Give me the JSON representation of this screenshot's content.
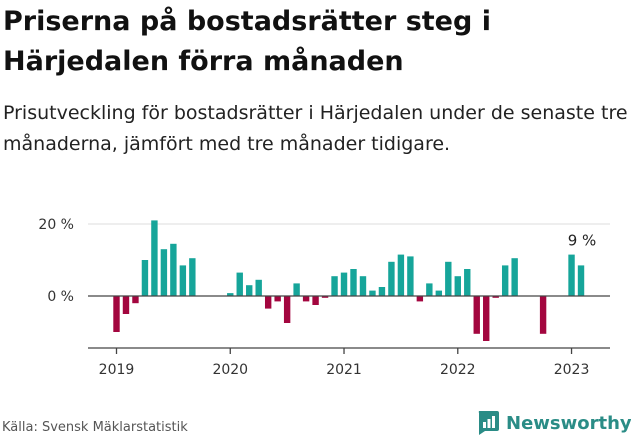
{
  "title": "Priserna på bostadsrätter steg i Härjedalen förra månaden",
  "subtitle": "Prisutveckling för bostadsrätter i Härjedalen under de senaste tre månaderna, jämfört med tre månader tidigare.",
  "source": "Källa: Svensk Mäklarstatistik",
  "logo": {
    "text": "Newsworthy",
    "icon": "newsworthy-chart-icon"
  },
  "colors": {
    "positive": "#16a59a",
    "negative": "#a3063f",
    "axis": "#444444",
    "grid": "#dddddd",
    "logo": "#2a8c86"
  },
  "chart_data": {
    "type": "bar",
    "x": [
      "2019-01",
      "2019-02",
      "2019-03",
      "2019-04",
      "2019-05",
      "2019-06",
      "2019-07",
      "2019-08",
      "2019-09",
      "2019-10",
      "2019-11",
      "2019-12",
      "2020-01",
      "2020-02",
      "2020-03",
      "2020-04",
      "2020-05",
      "2020-06",
      "2020-07",
      "2020-08",
      "2020-09",
      "2020-10",
      "2020-11",
      "2020-12",
      "2021-01",
      "2021-02",
      "2021-03",
      "2021-04",
      "2021-05",
      "2021-06",
      "2021-07",
      "2021-08",
      "2021-09",
      "2021-10",
      "2021-11",
      "2021-12",
      "2022-01",
      "2022-02",
      "2022-03",
      "2022-04",
      "2022-05",
      "2022-06",
      "2022-07",
      "2022-08",
      "2022-09",
      "2022-10",
      "2022-11",
      "2022-12",
      "2023-01",
      "2023-02"
    ],
    "values": [
      -10,
      -5,
      -2,
      10,
      21,
      13,
      14.5,
      8.5,
      10.5,
      null,
      null,
      null,
      0.8,
      6.5,
      3,
      4.5,
      -3.5,
      -1.5,
      -7.5,
      3.5,
      -1.5,
      -2.5,
      -0.5,
      5.5,
      6.5,
      7.5,
      5.5,
      1.5,
      2.5,
      9.5,
      11.5,
      11,
      -1.5,
      3.5,
      1.5,
      9.5,
      5.5,
      7.5,
      -10.5,
      -12.5,
      -0.5,
      8.5,
      10.5,
      null,
      null,
      -10.5,
      null,
      null,
      11.5,
      8.5
    ],
    "ylim": [
      -15,
      22
    ],
    "yticks": [
      0,
      20
    ],
    "ytick_labels": [
      "0 %",
      "20 %"
    ],
    "xticks": [
      "2019",
      "2020",
      "2021",
      "2022",
      "2023"
    ],
    "annotation": {
      "text": "9 %",
      "x": "2023-02"
    },
    "grid": true
  }
}
